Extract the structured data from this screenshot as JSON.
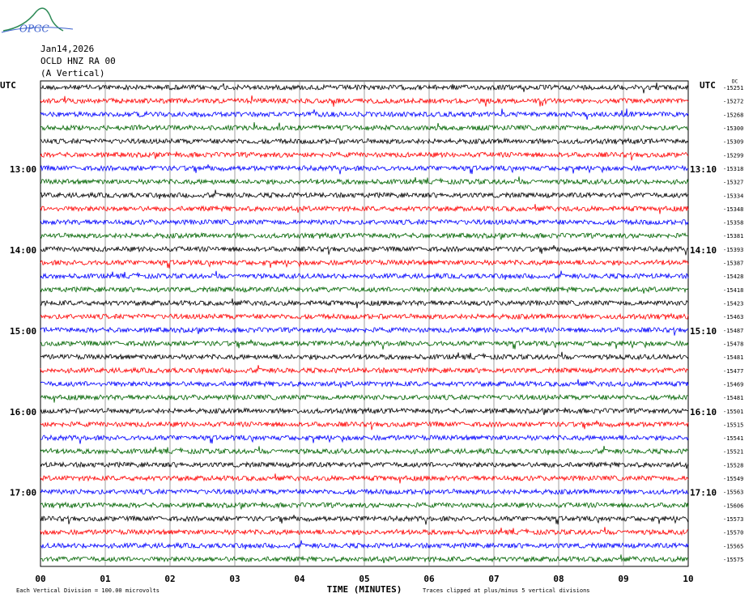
{
  "logo": "OPGC",
  "header": {
    "date": "Jan14,2026",
    "station": "OCLD HNZ RA 00",
    "component": "(A Vertical)"
  },
  "left_labels": {
    "unit": "UTC",
    "hours": [
      "13:00",
      "14:00",
      "15:00",
      "16:00",
      "17:00"
    ]
  },
  "right_labels": {
    "unit": "UTC",
    "times": [
      "13:10",
      "14:10",
      "15:10",
      "16:10",
      "17:10"
    ]
  },
  "dc_label": "DC",
  "trace_offsets": [
    "-15251",
    "-15272",
    "-15268",
    "-15300",
    "-15309",
    "-15299",
    "-15318",
    "-15327",
    "-15334",
    "-15348",
    "-15358",
    "-15381",
    "-15393",
    "-15387",
    "-15428",
    "-15418",
    "-15423",
    "-15463",
    "-15487",
    "-15478",
    "-15481",
    "-15477",
    "-15469",
    "-15481",
    "-15501",
    "-15515",
    "-15541",
    "-15521",
    "-15528",
    "-15549",
    "-15563",
    "-15606",
    "-15573",
    "-15570",
    "-15565",
    "-15575"
  ],
  "trace_colors": [
    "#000000",
    "#ff0000",
    "#0000ff",
    "#006400"
  ],
  "x_axis": {
    "ticks": [
      "00",
      "01",
      "02",
      "03",
      "04",
      "05",
      "06",
      "07",
      "08",
      "09",
      "10"
    ],
    "title": "TIME (MINUTES)"
  },
  "footer": {
    "division": "Each Vertical Division =  100.00 microvolts",
    "clip": "Traces clipped at plus/minus 5 vertical divisions"
  }
}
